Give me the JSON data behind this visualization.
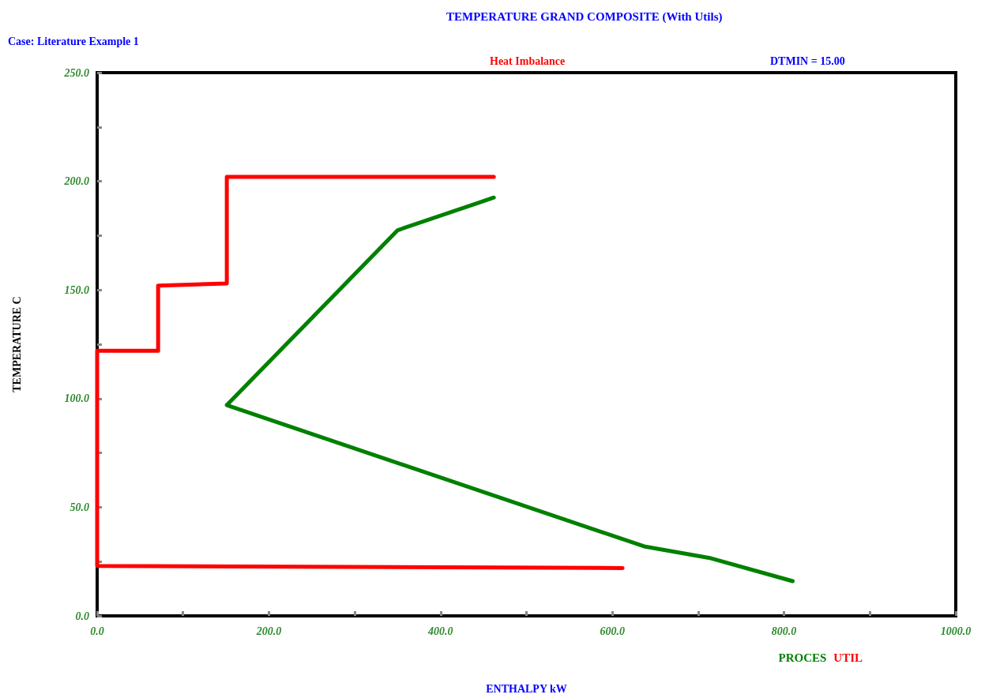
{
  "chart_data": {
    "type": "line",
    "title": "TEMPERATURE GRAND COMPOSITE (With Utils)",
    "xlabel": "ENTHALPY kW",
    "ylabel": "TEMPERATURE C",
    "annotations": [
      "Case: Literature Example 1",
      "Heat Imbalance",
      "DTMIN = 15.00"
    ],
    "series": [
      {
        "name": "PROCES",
        "color": "#008000",
        "x": [
          462,
          350,
          151,
          637,
          715,
          810
        ],
        "values": [
          192.5,
          177.5,
          97,
          32,
          26.5,
          16
        ]
      },
      {
        "name": "UTIL",
        "color": "#ff0000",
        "x": [
          612,
          0,
          0,
          71,
          71,
          151,
          151,
          462
        ],
        "values": [
          22,
          23,
          122,
          122,
          152,
          153,
          202,
          202
        ]
      }
    ],
    "xlim": [
      0,
      1000
    ],
    "xticks": [
      {
        "value": 0,
        "label": "0.0"
      },
      {
        "value": 100,
        "label": null
      },
      {
        "value": 200,
        "label": "200.0"
      },
      {
        "value": 300,
        "label": null
      },
      {
        "value": 400,
        "label": "400.0"
      },
      {
        "value": 500,
        "label": null
      },
      {
        "value": 600,
        "label": "600.0"
      },
      {
        "value": 700,
        "label": null
      },
      {
        "value": 800,
        "label": "800.0"
      },
      {
        "value": 900,
        "label": null
      },
      {
        "value": 1000,
        "label": "1000.0"
      }
    ],
    "ylim": [
      0,
      250
    ],
    "yticks": [
      {
        "value": 0,
        "label": "0.0"
      },
      {
        "value": 25,
        "label": null
      },
      {
        "value": 50,
        "label": "50.0"
      },
      {
        "value": 75,
        "label": null
      },
      {
        "value": 100,
        "label": "100.0"
      },
      {
        "value": 125,
        "label": null
      },
      {
        "value": 150,
        "label": "150.0"
      },
      {
        "value": 175,
        "label": null
      },
      {
        "value": 200,
        "label": "200.0"
      },
      {
        "value": 225,
        "label": null
      },
      {
        "value": 250,
        "label": "250.0"
      }
    ],
    "grid": false,
    "legend": "bottom right",
    "marker": "none",
    "line_style": "solid"
  }
}
